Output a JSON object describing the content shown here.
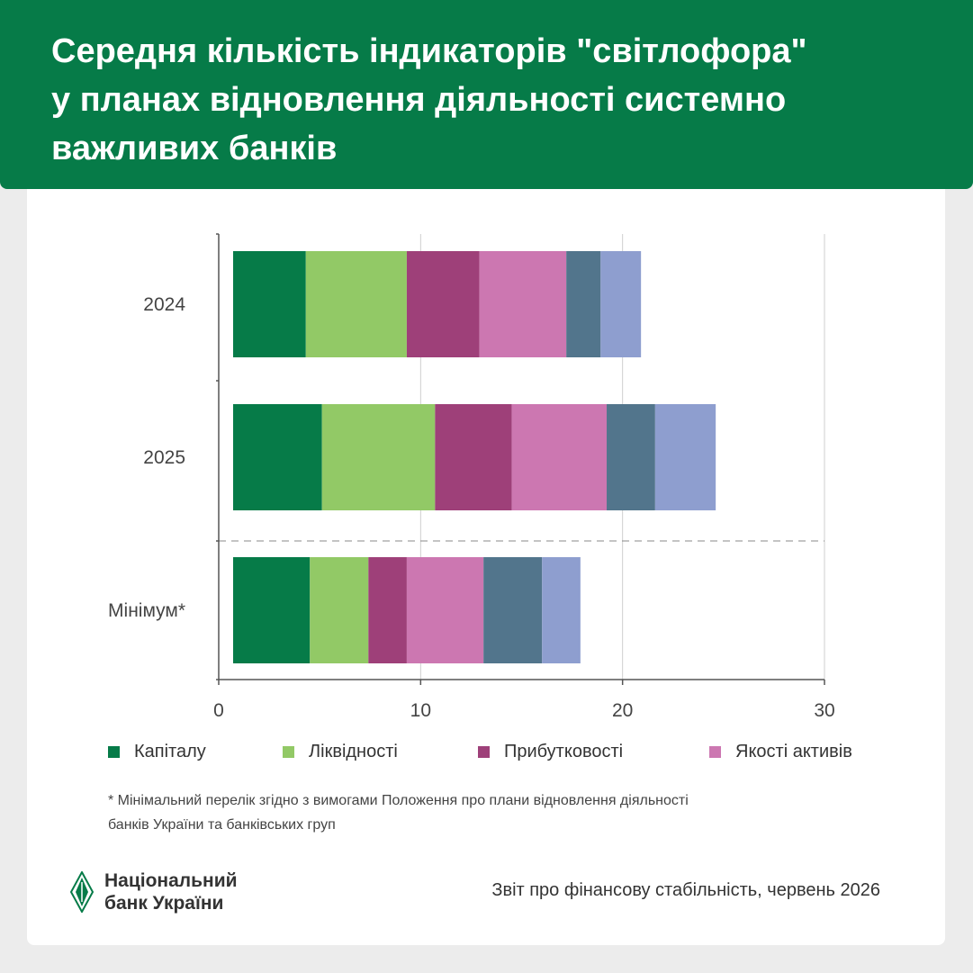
{
  "header": {
    "title_lines": [
      "Середня кількість індикаторів \"світлофора\"",
      "у планах відновлення діяльності системно",
      "важливих банків"
    ]
  },
  "colors": {
    "header_bg": "#067b48",
    "capital": "#067b48",
    "liquidity": "#92c966",
    "profitability": "#9e4079",
    "asset_quality": "#cc77b1",
    "series_5": "#52758c",
    "series_6": "#8e9ecf"
  },
  "chart_data": {
    "type": "bar",
    "orientation": "horizontal",
    "stacked": true,
    "categories": [
      "2024",
      "2025",
      "Мінімум*"
    ],
    "x_ticks": [
      "0",
      "10",
      "20",
      "30"
    ],
    "xlim": [
      0,
      30
    ],
    "grid": "vertical",
    "separator": "dashed line between 2025 and Мінімум*",
    "series": [
      {
        "name": "Капіталу",
        "color": "#067b48",
        "values": [
          3.6,
          4.4,
          3.8
        ]
      },
      {
        "name": "Ліквідності",
        "color": "#92c966",
        "values": [
          5.0,
          5.6,
          2.9
        ]
      },
      {
        "name": "Прибутковості",
        "color": "#9e4079",
        "values": [
          3.6,
          3.8,
          1.9
        ]
      },
      {
        "name": "Якості активів",
        "color": "#cc77b1",
        "values": [
          4.3,
          4.7,
          3.8
        ]
      },
      {
        "color": "#52758c",
        "values": [
          1.7,
          2.4,
          2.9
        ]
      },
      {
        "color": "#8e9ecf",
        "values": [
          2.0,
          3.0,
          1.9
        ]
      }
    ]
  },
  "legend": {
    "items": [
      {
        "label": "Капіталу",
        "color": "#067b48"
      },
      {
        "label": "Ліквідності",
        "color": "#92c966"
      },
      {
        "label": "Прибутковості",
        "color": "#9e4079"
      },
      {
        "label": "Якості активів",
        "color": "#cc77b1"
      }
    ]
  },
  "footnote": {
    "lines": [
      "* Мінімальний перелік згідно з вимогами Положення про плани відновлення діяльності",
      "банків України та банківських груп"
    ]
  },
  "footer": {
    "logo_lines": [
      "Національний",
      "банк України"
    ],
    "source": "Звіт про фінансову стабільність, червень 2026"
  }
}
